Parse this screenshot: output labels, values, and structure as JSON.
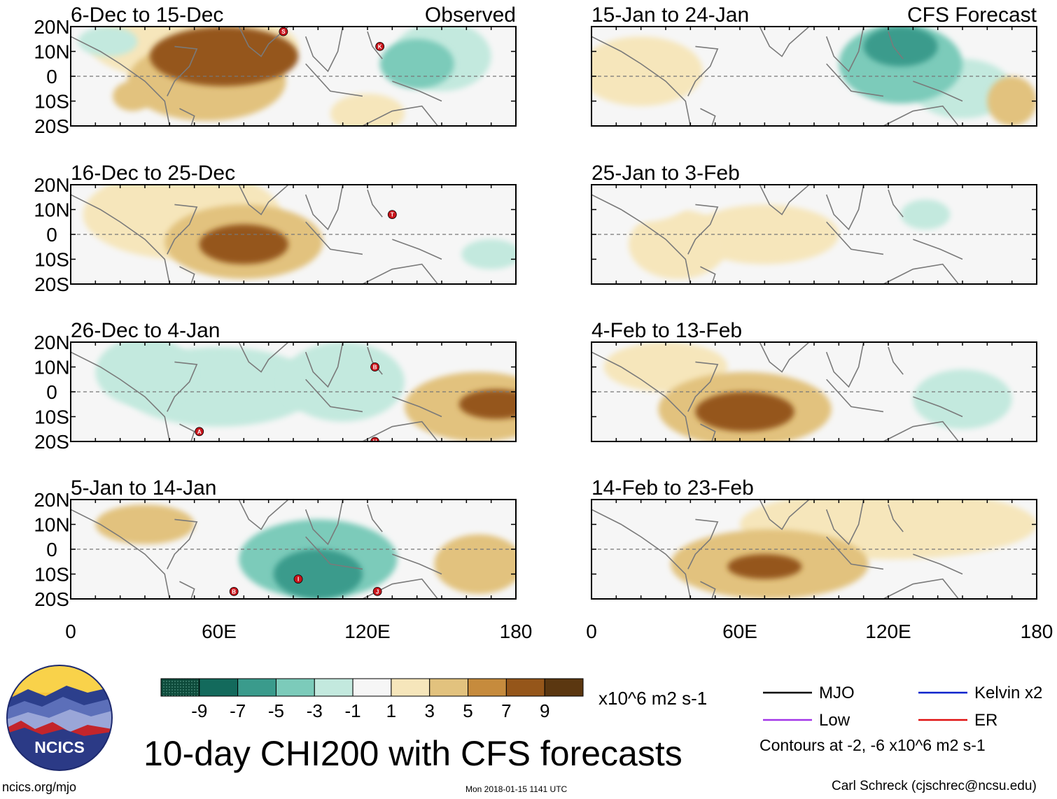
{
  "chart_data": {
    "type": "heatmap",
    "title": "10-day CHI200 with CFS forecasts",
    "units": "x10^6 m2 s-1",
    "x_ticks": [
      "0",
      "60E",
      "120E",
      "180"
    ],
    "y_ticks": [
      "20N",
      "10N",
      "0",
      "10S",
      "20S"
    ],
    "xlim": [
      0,
      180
    ],
    "ylim": [
      -20,
      20
    ],
    "corner_labels": {
      "left": "Observed",
      "right": "CFS Forecast"
    },
    "colorbar": {
      "labels": [
        "-9",
        "-7",
        "-5",
        "-3",
        "-1",
        "1",
        "3",
        "5",
        "7",
        "9"
      ],
      "colors": [
        "#0d4a3a",
        "#136a5c",
        "#3a9b8c",
        "#7ccbba",
        "#c3e9de",
        "#f6f6f6",
        "#f6e6bb",
        "#e2c27e",
        "#c68b3d",
        "#95561a",
        "#5b3710"
      ]
    },
    "panels": [
      {
        "label": "6-Dec to 15-Dec",
        "column": "observed",
        "blobs": [
          [
            62,
            8,
            30,
            12,
            7
          ],
          [
            55,
            -2,
            32,
            16,
            3
          ],
          [
            50,
            12,
            42,
            14,
            1
          ],
          [
            25,
            -8,
            8,
            6,
            3
          ],
          [
            140,
            5,
            15,
            10,
            -5
          ],
          [
            150,
            8,
            20,
            14,
            -3
          ],
          [
            15,
            14,
            12,
            6,
            -3
          ],
          [
            120,
            -15,
            15,
            8,
            1
          ]
        ],
        "storms": [
          [
            86,
            18,
            "S"
          ],
          [
            125,
            12,
            "K"
          ]
        ]
      },
      {
        "label": "16-Dec to 25-Dec",
        "column": "observed",
        "blobs": [
          [
            70,
            -4,
            18,
            8,
            7
          ],
          [
            70,
            -3,
            32,
            15,
            3
          ],
          [
            45,
            8,
            40,
            18,
            1
          ],
          [
            170,
            -8,
            12,
            6,
            -3
          ],
          [
            135,
            10,
            20,
            10,
            -1
          ]
        ],
        "storms": [
          [
            130,
            8,
            "T"
          ]
        ]
      },
      {
        "label": "26-Dec to 4-Jan",
        "column": "observed",
        "blobs": [
          [
            172,
            -5,
            15,
            6,
            7
          ],
          [
            165,
            -6,
            30,
            14,
            3
          ],
          [
            60,
            2,
            40,
            16,
            -3
          ],
          [
            110,
            4,
            25,
            16,
            -3
          ],
          [
            30,
            8,
            20,
            14,
            -3
          ]
        ],
        "storms": [
          [
            52,
            -16,
            "A"
          ],
          [
            123,
            10,
            "B"
          ],
          [
            123,
            -20,
            "H"
          ]
        ]
      },
      {
        "label": "5-Jan to 14-Jan",
        "column": "observed",
        "blobs": [
          [
            100,
            -10,
            18,
            10,
            -7
          ],
          [
            100,
            -4,
            32,
            16,
            -5
          ],
          [
            165,
            -6,
            18,
            12,
            3
          ],
          [
            30,
            10,
            20,
            8,
            3
          ],
          [
            150,
            8,
            30,
            12,
            -1
          ]
        ],
        "storms": [
          [
            66,
            -17,
            "B"
          ],
          [
            92,
            -12,
            "I"
          ],
          [
            124,
            -17,
            "J"
          ]
        ]
      },
      {
        "label": "15-Jan to 24-Jan",
        "column": "forecast",
        "blobs": [
          [
            125,
            12,
            15,
            8,
            -7
          ],
          [
            125,
            5,
            25,
            16,
            -5
          ],
          [
            150,
            -5,
            20,
            12,
            -3
          ],
          [
            20,
            2,
            25,
            14,
            1
          ],
          [
            170,
            -10,
            10,
            10,
            3
          ]
        ],
        "storms": []
      },
      {
        "label": "25-Jan to 3-Feb",
        "column": "forecast",
        "blobs": [
          [
            70,
            0,
            30,
            12,
            1
          ],
          [
            35,
            -4,
            20,
            14,
            1
          ],
          [
            135,
            8,
            10,
            6,
            -3
          ],
          [
            20,
            15,
            20,
            10,
            -1
          ]
        ],
        "storms": []
      },
      {
        "label": "4-Feb to 13-Feb",
        "column": "forecast",
        "blobs": [
          [
            62,
            -8,
            20,
            8,
            7
          ],
          [
            62,
            -7,
            35,
            15,
            3
          ],
          [
            150,
            -3,
            20,
            12,
            -3
          ],
          [
            30,
            10,
            25,
            10,
            1
          ]
        ],
        "storms": []
      },
      {
        "label": "14-Feb to 23-Feb",
        "column": "forecast",
        "blobs": [
          [
            70,
            -7,
            15,
            5,
            7
          ],
          [
            72,
            -6,
            40,
            14,
            3
          ],
          [
            120,
            10,
            60,
            14,
            1
          ],
          [
            20,
            12,
            20,
            10,
            -1
          ]
        ],
        "storms": []
      }
    ],
    "legend": [
      {
        "name": "MJO",
        "color": "#000000"
      },
      {
        "name": "Low",
        "color": "#a336e8"
      },
      {
        "name": "Kelvin x2",
        "color": "#0022cc"
      },
      {
        "name": "ER",
        "color": "#e01111"
      }
    ],
    "contours_note": "Contours at -2, -6 x10^6 m2 s-1"
  },
  "footer": {
    "site": "ncics.org/mjo",
    "date": "Mon 2018-01-15 1141 UTC",
    "credit": "Carl Schreck (cjschrec@ncsu.edu)",
    "logo_text": "NCICS"
  }
}
